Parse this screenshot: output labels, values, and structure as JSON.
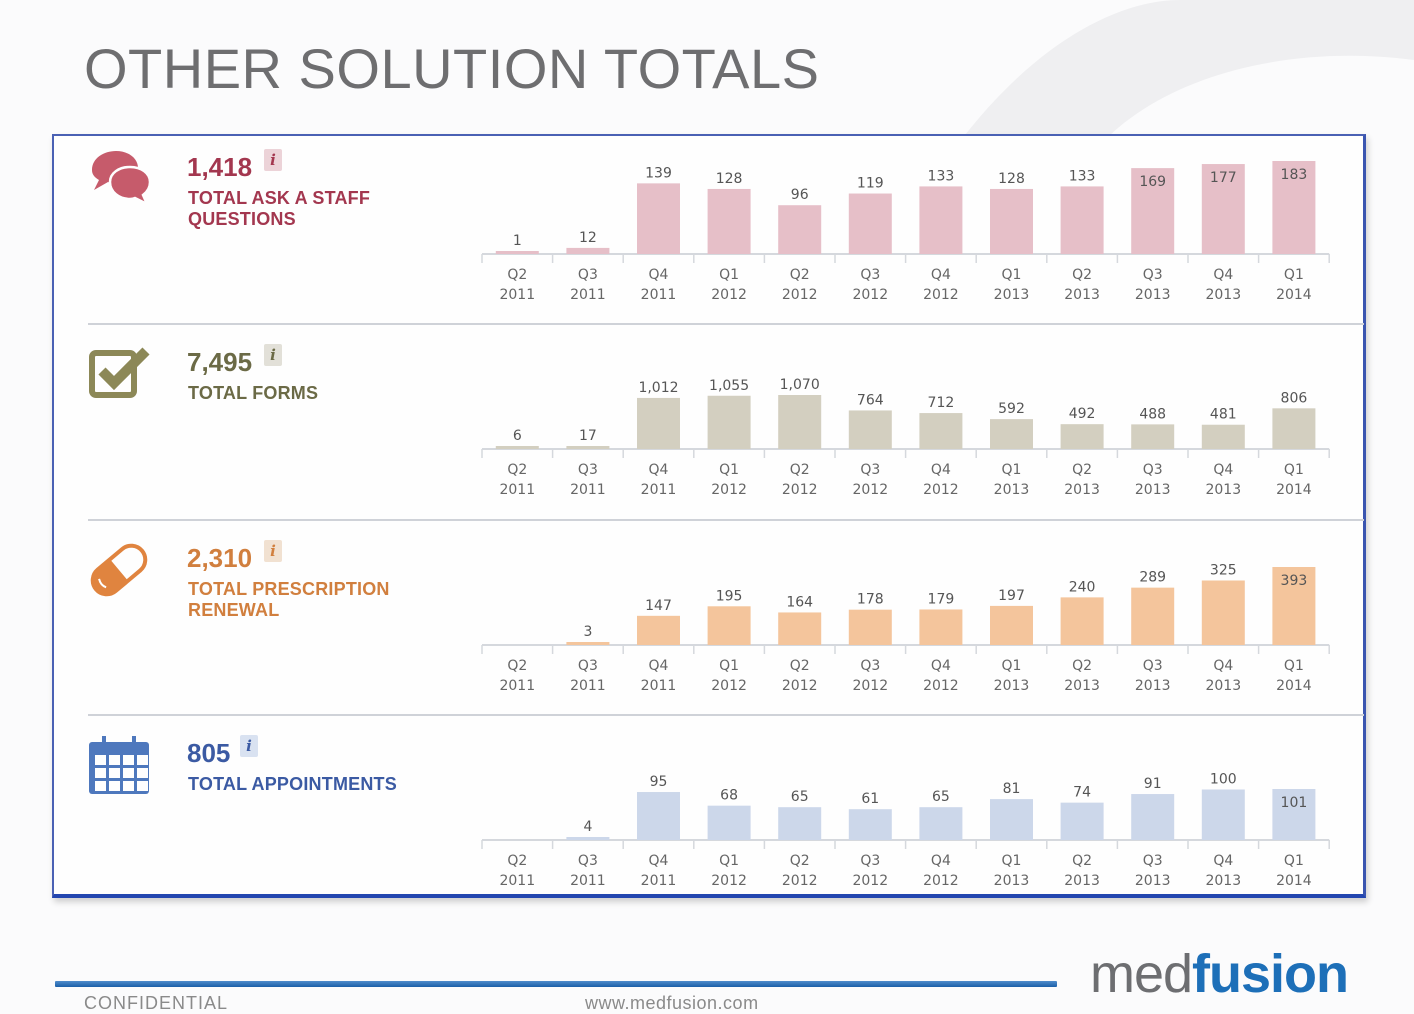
{
  "page": {
    "title": "OTHER SOLUTION TOTALS"
  },
  "footer": {
    "left": "CONFIDENTIAL",
    "center": "www.medfusion.com",
    "logo_part1": "med",
    "logo_part2": "fusion"
  },
  "panels": [
    {
      "total": "1,418",
      "label": "TOTAL ASK A STAFF QUESTIONS",
      "icon": "speech-bubbles-icon",
      "info_glyph": "i",
      "text_color": "#a3374f",
      "bar_color": "#e6bfc8",
      "icon_color": "#c65b6b",
      "info_bg": "#ecd3d8"
    },
    {
      "total": "7,495",
      "label": "TOTAL FORMS",
      "icon": "checkbox-icon",
      "info_glyph": "i",
      "text_color": "#6b6a46",
      "bar_color": "#d3cfc0",
      "icon_color": "#8c8857",
      "info_bg": "#e2e0d8"
    },
    {
      "total": "2,310",
      "label": "TOTAL PRESCRIPTION RENEWAL",
      "icon": "pill-icon",
      "info_glyph": "i",
      "text_color": "#d17f3e",
      "bar_color": "#f4c59c",
      "icon_color": "#e0843f",
      "info_bg": "#f1e1d1"
    },
    {
      "total": "805",
      "label": "TOTAL APPOINTMENTS",
      "icon": "calendar-icon",
      "info_glyph": "i",
      "text_color": "#3b5aa3",
      "bar_color": "#ccd7ea",
      "icon_color": "#4e78bd",
      "info_bg": "#d9e2f1"
    }
  ],
  "chart_data": [
    {
      "type": "bar",
      "title": "TOTAL ASK A STAFF QUESTIONS",
      "categories": [
        [
          "Q2",
          "2011"
        ],
        [
          "Q3",
          "2011"
        ],
        [
          "Q4",
          "2011"
        ],
        [
          "Q1",
          "2012"
        ],
        [
          "Q2",
          "2012"
        ],
        [
          "Q3",
          "2012"
        ],
        [
          "Q4",
          "2012"
        ],
        [
          "Q1",
          "2013"
        ],
        [
          "Q2",
          "2013"
        ],
        [
          "Q3",
          "2013"
        ],
        [
          "Q4",
          "2013"
        ],
        [
          "Q1",
          "2014"
        ]
      ],
      "values": [
        1,
        12,
        139,
        128,
        96,
        119,
        133,
        128,
        133,
        169,
        177,
        183
      ],
      "labels": [
        "1",
        "12",
        "139",
        "128",
        "96",
        "119",
        "133",
        "128",
        "133",
        "169",
        "177",
        "183"
      ],
      "ylim": [
        0,
        183
      ]
    },
    {
      "type": "bar",
      "title": "TOTAL FORMS",
      "categories": [
        [
          "Q2",
          "2011"
        ],
        [
          "Q3",
          "2011"
        ],
        [
          "Q4",
          "2011"
        ],
        [
          "Q1",
          "2012"
        ],
        [
          "Q2",
          "2012"
        ],
        [
          "Q3",
          "2012"
        ],
        [
          "Q4",
          "2012"
        ],
        [
          "Q1",
          "2013"
        ],
        [
          "Q2",
          "2013"
        ],
        [
          "Q3",
          "2013"
        ],
        [
          "Q4",
          "2013"
        ],
        [
          "Q1",
          "2014"
        ]
      ],
      "values": [
        6,
        17,
        1012,
        1055,
        1070,
        764,
        712,
        592,
        492,
        488,
        481,
        806
      ],
      "labels": [
        "6",
        "17",
        "1,012",
        "1,055",
        "1,070",
        "764",
        "712",
        "592",
        "492",
        "488",
        "481",
        "806"
      ],
      "ylim": [
        0,
        1070
      ]
    },
    {
      "type": "bar",
      "title": "TOTAL PRESCRIPTION RENEWAL",
      "categories": [
        [
          "Q2",
          "2011"
        ],
        [
          "Q3",
          "2011"
        ],
        [
          "Q4",
          "2011"
        ],
        [
          "Q1",
          "2012"
        ],
        [
          "Q2",
          "2012"
        ],
        [
          "Q3",
          "2012"
        ],
        [
          "Q4",
          "2012"
        ],
        [
          "Q1",
          "2013"
        ],
        [
          "Q2",
          "2013"
        ],
        [
          "Q3",
          "2013"
        ],
        [
          "Q4",
          "2013"
        ],
        [
          "Q1",
          "2014"
        ]
      ],
      "values": [
        0,
        3,
        147,
        195,
        164,
        178,
        179,
        197,
        240,
        289,
        325,
        393
      ],
      "labels": [
        "",
        "3",
        "147",
        "195",
        "164",
        "178",
        "179",
        "197",
        "240",
        "289",
        "325",
        "393"
      ],
      "ylim": [
        0,
        393
      ]
    },
    {
      "type": "bar",
      "title": "TOTAL APPOINTMENTS",
      "categories": [
        [
          "Q2",
          "2011"
        ],
        [
          "Q3",
          "2011"
        ],
        [
          "Q4",
          "2011"
        ],
        [
          "Q1",
          "2012"
        ],
        [
          "Q2",
          "2012"
        ],
        [
          "Q3",
          "2012"
        ],
        [
          "Q4",
          "2012"
        ],
        [
          "Q1",
          "2013"
        ],
        [
          "Q2",
          "2013"
        ],
        [
          "Q3",
          "2013"
        ],
        [
          "Q4",
          "2013"
        ],
        [
          "Q1",
          "2014"
        ]
      ],
      "values": [
        0,
        4,
        95,
        68,
        65,
        61,
        65,
        81,
        74,
        91,
        100,
        101
      ],
      "labels": [
        "",
        "4",
        "95",
        "68",
        "65",
        "61",
        "65",
        "81",
        "74",
        "91",
        "100",
        "101"
      ],
      "ylim": [
        0,
        101
      ]
    }
  ]
}
